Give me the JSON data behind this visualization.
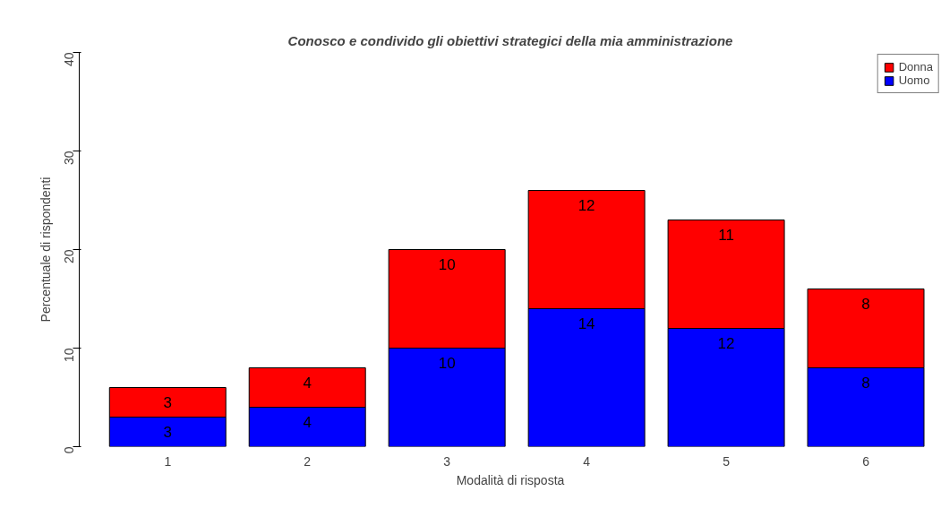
{
  "chart_data": {
    "type": "bar",
    "title": "Conosco e condivido gli obiettivi strategici della mia amministrazione",
    "xlabel": "Modalità di risposta",
    "ylabel": "Percentuale di rispondenti",
    "categories": [
      "1",
      "2",
      "3",
      "4",
      "5",
      "6"
    ],
    "series": [
      {
        "name": "Uomo",
        "color": "#0000ff",
        "values": [
          3,
          4,
          10,
          14,
          12,
          8
        ]
      },
      {
        "name": "Donna",
        "color": "#ff0000",
        "values": [
          3,
          4,
          10,
          12,
          11,
          8
        ]
      }
    ],
    "stacked": true,
    "data_labels": true,
    "ylim": [
      0,
      40
    ],
    "yticks": [
      0,
      10,
      20,
      30,
      40
    ],
    "grid": false,
    "legend": "top right"
  }
}
